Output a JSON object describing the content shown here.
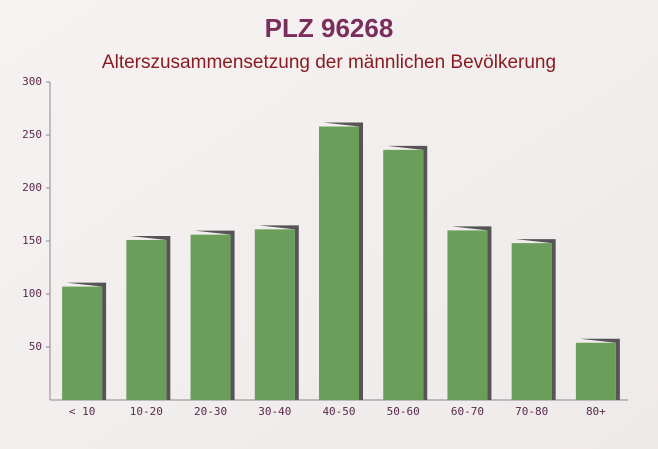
{
  "chart_data": {
    "type": "bar",
    "title": "PLZ 96268",
    "subtitle": "Alterszusammensetzung der männlichen Bevölkerung",
    "categories": [
      "< 10",
      "10-20",
      "20-30",
      "30-40",
      "40-50",
      "50-60",
      "60-70",
      "70-80",
      "80+"
    ],
    "values": [
      107,
      151,
      156,
      161,
      258,
      236,
      160,
      148,
      54
    ],
    "color": "#6a9e5a",
    "ylim": [
      0,
      300
    ],
    "yticks": [
      50,
      100,
      150,
      200,
      250,
      300
    ],
    "grid": false
  }
}
